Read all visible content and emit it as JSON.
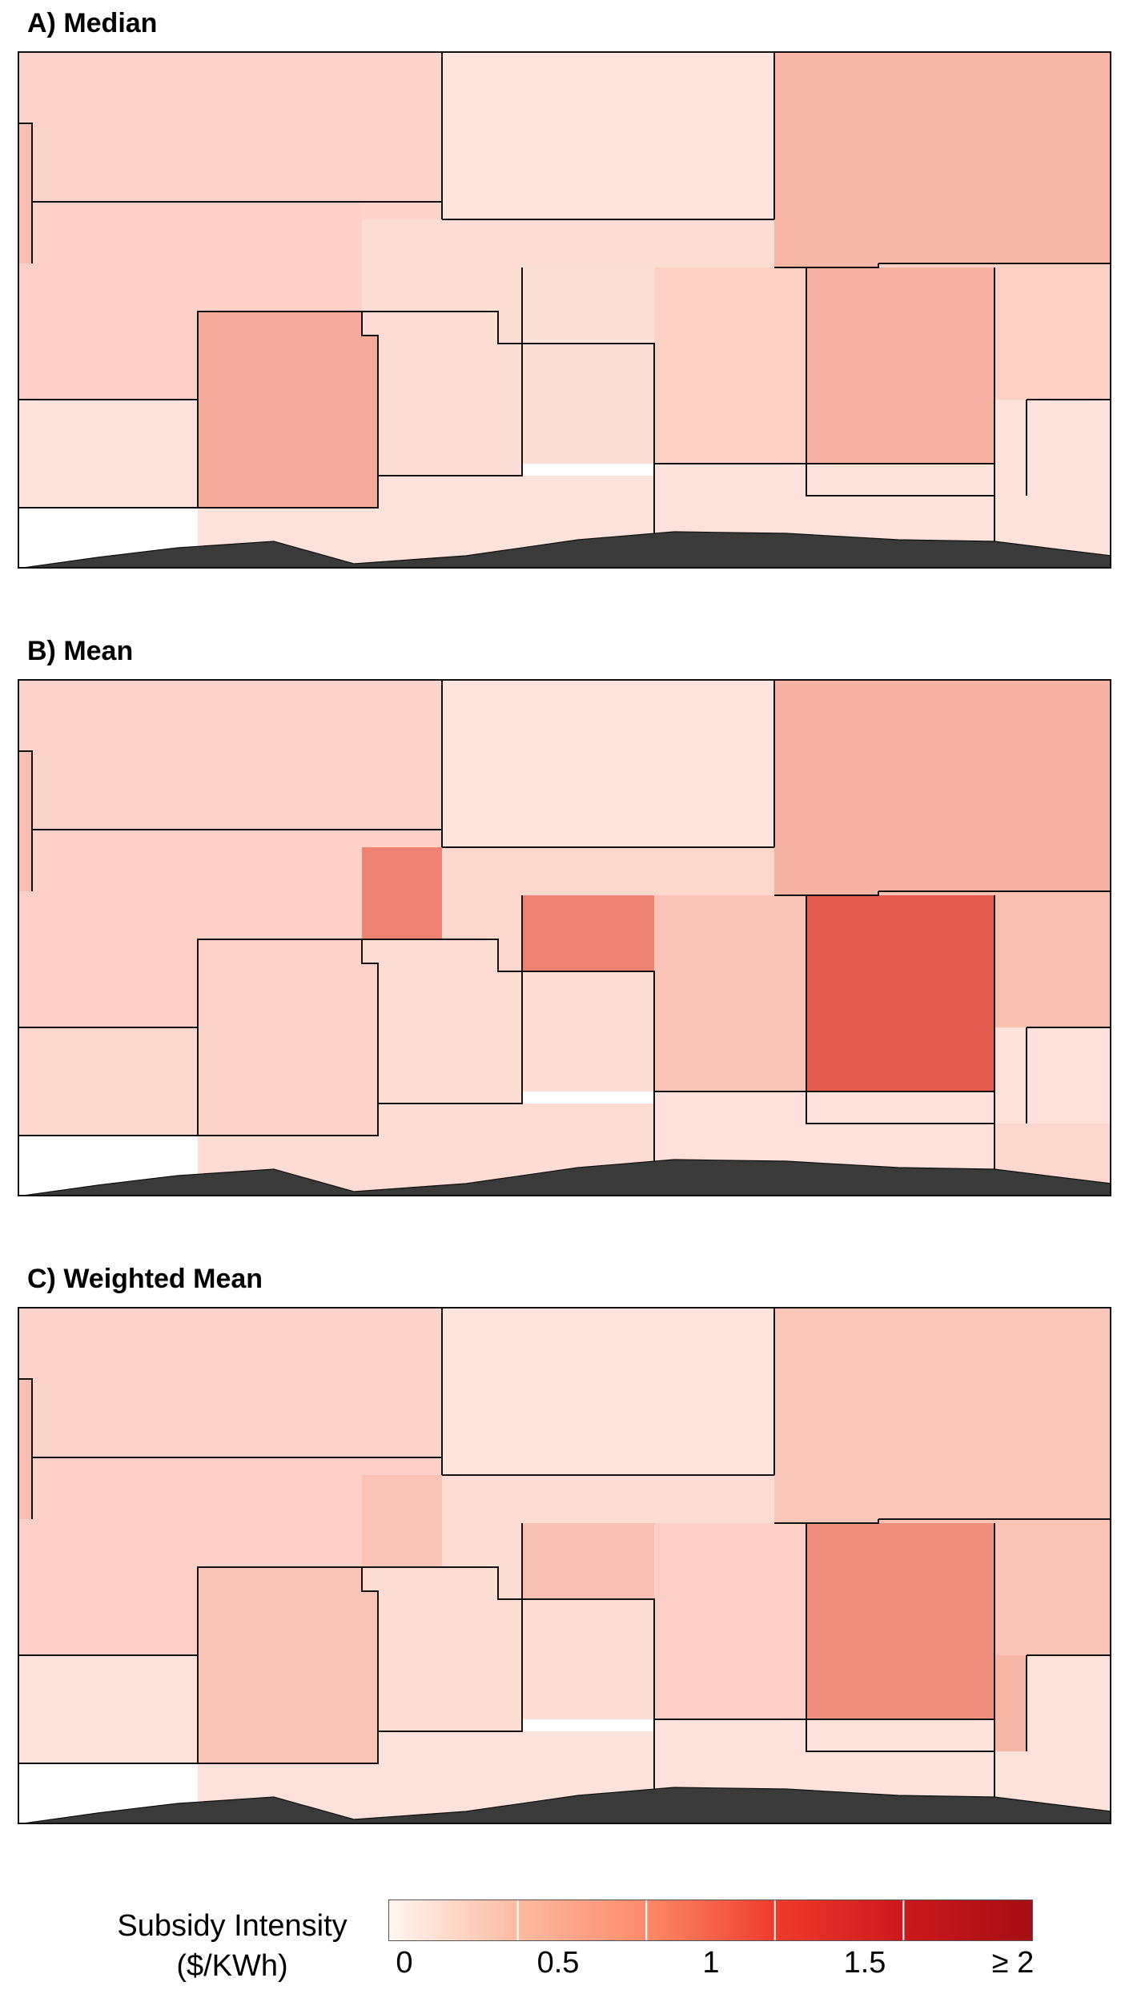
{
  "panels": [
    {
      "title": "A) Median",
      "regions": {
        "arctic": "#fde4dd",
        "np_left": "#fbd3c9",
        "np_right": "#f7b6a6",
        "nw_pac": "#fbd0c6",
        "ne_pac": "#fbd3c9",
        "wc_pac": "#fbd1c6",
        "cw_atl": "#fcdcd3",
        "ne_atl": "#fbd4c9",
        "caribbean": "#fcdcd3",
        "med": "#fde1d9",
        "se_pac": "#f5ab9b",
        "sw_atl": "#fcdcd3",
        "se_atl": "#fcded6",
        "w_ind": "#fbd1c6",
        "e_ind": "#f6b0a1",
        "sw_pac": "#fde1da",
        "left_strip": "#f8c0b2",
        "s_left": "#fde2db",
        "s_mid": "#fde2db",
        "s_right": "#fde2db",
        "nz": "#fde2db",
        "s_far_right": "#fde2db"
      }
    },
    {
      "title": "B) Mean",
      "regions": {
        "arctic": "#fde4dd",
        "np_left": "#fbd3c9",
        "np_right": "#f7b3a3",
        "nw_pac": "#fbd0c6",
        "ne_pac": "#fbd0c6",
        "wc_pac": "#f8bfb1",
        "cw_atl": "#fcd7cd",
        "ne_atl": "#fbd2c8",
        "caribbean": "#ef8373",
        "med": "#ef8373",
        "se_pac": "#fbd2c8",
        "sw_atl": "#fcdcd3",
        "se_atl": "#fcdcd3",
        "w_ind": "#f9c4b7",
        "e_ind": "#e45b4f",
        "sw_pac": "#fde1da",
        "left_strip": "#f8c0b2",
        "s_left": "#fcd7cd",
        "s_mid": "#fcdcd3",
        "s_right": "#fde1da",
        "nz": "#fde1da",
        "s_far_right": "#fcd7cd"
      }
    },
    {
      "title": "C) Weighted Mean",
      "regions": {
        "arctic": "#fde4dd",
        "np_left": "#fbd3c9",
        "np_right": "#f9c6b9",
        "nw_pac": "#fbd0c6",
        "ne_pac": "#fbd0c6",
        "wc_pac": "#f9c3b6",
        "cw_atl": "#fcdcd3",
        "ne_atl": "#fbd4c9",
        "caribbean": "#f9c3b6",
        "med": "#f8c0b2",
        "se_pac": "#f9c3b6",
        "sw_atl": "#fcdcd3",
        "se_atl": "#fcdcd3",
        "w_ind": "#fbd0c6",
        "e_ind": "#ef8f7d",
        "sw_pac": "#f7b6a6",
        "left_strip": "#f8c0b2",
        "s_left": "#fde2db",
        "s_mid": "#fde2db",
        "s_right": "#fde2db",
        "nz": "#fde2db",
        "s_far_right": "#fde2db"
      }
    }
  ],
  "legend": {
    "title_line1": "Subsidy Intensity",
    "title_line2": "($/KWh)",
    "ticks": [
      "0",
      "0.5",
      "1",
      "1.5",
      "≥ 2"
    ],
    "colors": [
      "#fff5f0",
      "#fcbba1",
      "#fc8a6a",
      "#ef3b2c",
      "#cb181d",
      "#a50f15"
    ]
  },
  "colors": {
    "land": "#3a3a3a",
    "land_border": "#111111",
    "region_border": "#111111"
  }
}
